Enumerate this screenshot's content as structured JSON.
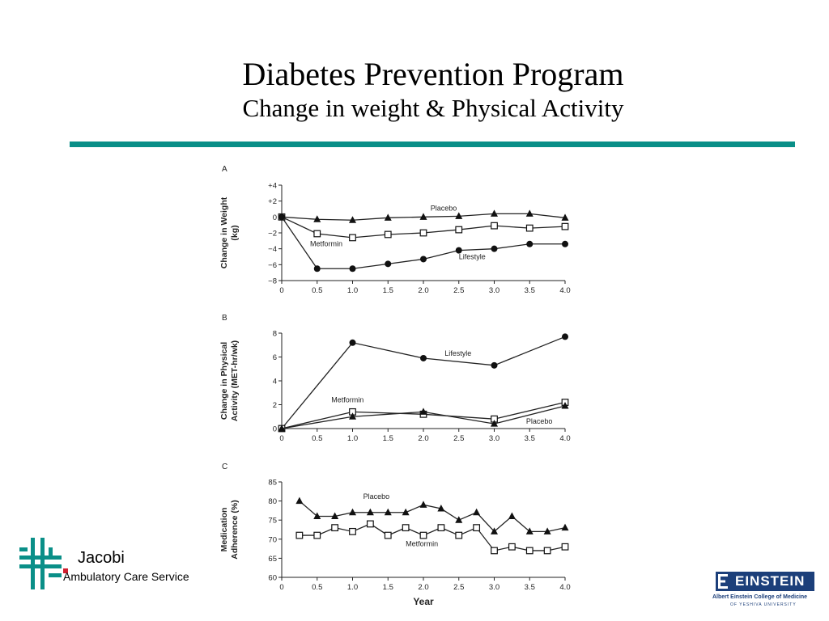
{
  "header": {
    "title": "Diabetes Prevention Program",
    "subtitle": "Change in weight & Physical Activity"
  },
  "colors": {
    "rule": "#0a8f88",
    "einstein_blue": "#1c3f7a",
    "jacobi_teal": "#0a8f88",
    "jacobi_red": "#d01f2f"
  },
  "chart_data": [
    {
      "type": "line",
      "panel": "A",
      "ylabel": "Change in Weight (kg)",
      "ylabel_lines": [
        "Change in Weight",
        "(kg)"
      ],
      "ylim": [
        -8,
        4
      ],
      "yticks": [
        "+4",
        "+2",
        "0",
        "−2",
        "−4",
        "−6",
        "−8"
      ],
      "ytick_values": [
        4,
        2,
        0,
        -2,
        -4,
        -6,
        -8
      ],
      "xlim": [
        0,
        4
      ],
      "xticks": [
        "0",
        "0.5",
        "1.0",
        "1.5",
        "2.0",
        "2.5",
        "3.0",
        "3.5",
        "4.0"
      ],
      "xtick_values": [
        0,
        0.5,
        1,
        1.5,
        2,
        2.5,
        3,
        3.5,
        4
      ],
      "xlabel": "",
      "series": [
        {
          "name": "Placebo",
          "marker": "triangle",
          "x": [
            0,
            0.5,
            1.0,
            1.5,
            2.0,
            2.5,
            3.0,
            3.5,
            4.0
          ],
          "y": [
            0,
            -0.3,
            -0.4,
            -0.1,
            0,
            0.1,
            0.4,
            0.4,
            -0.1
          ]
        },
        {
          "name": "Metformin",
          "marker": "square",
          "x": [
            0,
            0.5,
            1.0,
            1.5,
            2.0,
            2.5,
            3.0,
            3.5,
            4.0
          ],
          "y": [
            0,
            -2.1,
            -2.6,
            -2.2,
            -2.0,
            -1.6,
            -1.1,
            -1.4,
            -1.2
          ]
        },
        {
          "name": "Lifestyle",
          "marker": "circle",
          "x": [
            0,
            0.5,
            1.0,
            1.5,
            2.0,
            2.5,
            3.0,
            3.5,
            4.0
          ],
          "y": [
            0,
            -6.5,
            -6.5,
            -5.9,
            -5.3,
            -4.2,
            -4.0,
            -3.4,
            -3.4
          ]
        }
      ],
      "series_labels": [
        {
          "name": "Placebo",
          "x": 2.1,
          "y": 0.8
        },
        {
          "name": "Metformin",
          "x": 0.4,
          "y": -3.7
        },
        {
          "name": "Lifestyle",
          "x": 2.5,
          "y": -5.3
        }
      ]
    },
    {
      "type": "line",
      "panel": "B",
      "ylabel": "Change in Physical Activity (MET-hr/wk)",
      "ylabel_lines": [
        "Change in Physical",
        "Activity (MET-hr/wk)"
      ],
      "ylim": [
        0,
        8
      ],
      "yticks": [
        "8",
        "6",
        "4",
        "2",
        "0"
      ],
      "ytick_values": [
        8,
        6,
        4,
        2,
        0
      ],
      "xlim": [
        0,
        4
      ],
      "xticks": [
        "0",
        "0.5",
        "1.0",
        "1.5",
        "2.0",
        "2.5",
        "3.0",
        "3.5",
        "4.0"
      ],
      "xtick_values": [
        0,
        0.5,
        1,
        1.5,
        2,
        2.5,
        3,
        3.5,
        4
      ],
      "xlabel": "",
      "series": [
        {
          "name": "Lifestyle",
          "marker": "circle",
          "x": [
            0,
            1.0,
            2.0,
            3.0,
            4.0
          ],
          "y": [
            0,
            7.2,
            5.9,
            5.3,
            7.7
          ]
        },
        {
          "name": "Metformin",
          "marker": "square",
          "x": [
            0,
            1.0,
            2.0,
            3.0,
            4.0
          ],
          "y": [
            0,
            1.4,
            1.2,
            0.8,
            2.2
          ]
        },
        {
          "name": "Placebo",
          "marker": "triangle",
          "x": [
            0,
            1.0,
            2.0,
            3.0,
            4.0
          ],
          "y": [
            0,
            1.0,
            1.4,
            0.4,
            1.9
          ]
        }
      ],
      "series_labels": [
        {
          "name": "Lifestyle",
          "x": 2.3,
          "y": 6.1
        },
        {
          "name": "Metformin",
          "x": 0.7,
          "y": 2.2
        },
        {
          "name": "Placebo",
          "x": 3.45,
          "y": 0.4
        }
      ]
    },
    {
      "type": "line",
      "panel": "C",
      "ylabel": "Medication Adherence (%)",
      "ylabel_lines": [
        "Medication",
        "Adherence (%)"
      ],
      "ylim": [
        60,
        85
      ],
      "yticks": [
        "85",
        "80",
        "75",
        "70",
        "65",
        "60"
      ],
      "ytick_values": [
        85,
        80,
        75,
        70,
        65,
        60
      ],
      "xlim": [
        0,
        4
      ],
      "xticks": [
        "0",
        "0.5",
        "1.0",
        "1.5",
        "2.0",
        "2.5",
        "3.0",
        "3.5",
        "4.0"
      ],
      "xtick_values": [
        0,
        0.5,
        1,
        1.5,
        2,
        2.5,
        3,
        3.5,
        4
      ],
      "xlabel": "Year",
      "series": [
        {
          "name": "Placebo",
          "marker": "triangle",
          "x": [
            0.25,
            0.5,
            0.75,
            1.0,
            1.25,
            1.5,
            1.75,
            2.0,
            2.25,
            2.5,
            2.75,
            3.0,
            3.25,
            3.5,
            3.75,
            4.0
          ],
          "y": [
            80,
            76,
            76,
            77,
            77,
            77,
            77,
            79,
            78,
            75,
            77,
            72,
            76,
            72,
            72,
            73
          ]
        },
        {
          "name": "Metformin",
          "marker": "square",
          "x": [
            0.25,
            0.5,
            0.75,
            1.0,
            1.25,
            1.5,
            1.75,
            2.0,
            2.25,
            2.5,
            2.75,
            3.0,
            3.25,
            3.5,
            3.75,
            4.0
          ],
          "y": [
            71,
            71,
            73,
            72,
            74,
            71,
            73,
            71,
            73,
            71,
            73,
            67,
            68,
            67,
            67,
            68
          ]
        }
      ],
      "series_labels": [
        {
          "name": "Placebo",
          "x": 1.15,
          "y": 80.5
        },
        {
          "name": "Metformin",
          "x": 1.75,
          "y": 68.2
        }
      ]
    }
  ],
  "logos": {
    "jacobi": {
      "name": "Jacobi",
      "subtitle": "Ambulatory Care Service"
    },
    "einstein": {
      "wordmark": "EINSTEIN",
      "line1": "Albert Einstein College of Medicine",
      "line2": "OF YESHIVA UNIVERSITY"
    }
  }
}
